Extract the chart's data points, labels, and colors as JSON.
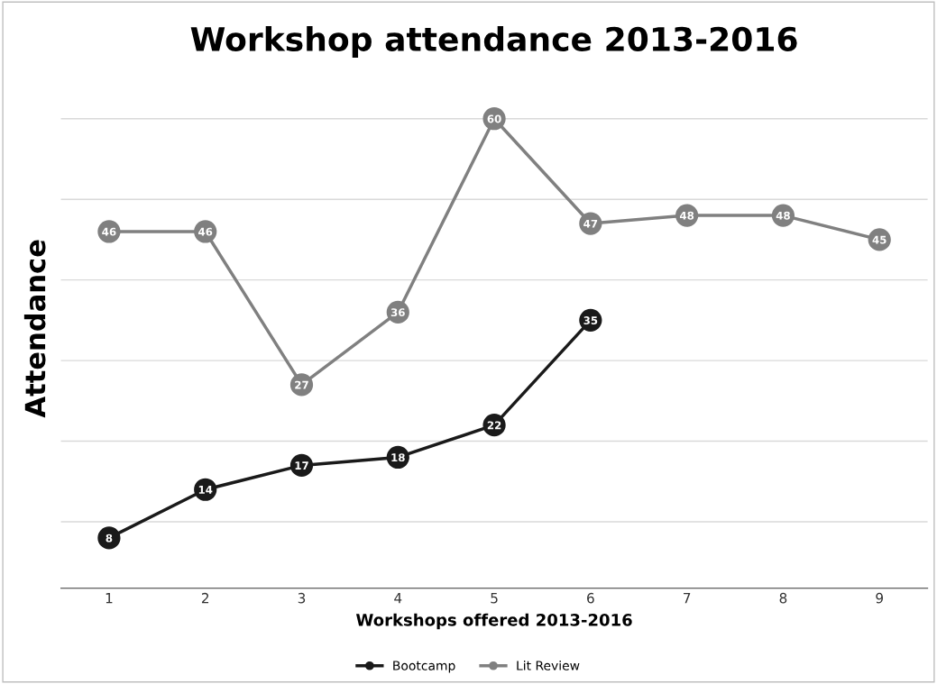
{
  "chart_data": {
    "type": "line",
    "title": "Workshop attendance 2013-2016",
    "xlabel": "Workshops offered 2013-2016",
    "ylabel": "Attendance",
    "categories": [
      "1",
      "2",
      "3",
      "4",
      "5",
      "6",
      "7",
      "8",
      "9"
    ],
    "series": [
      {
        "name": "Bootcamp",
        "color": "#1a1a1a",
        "values": [
          8,
          14,
          17,
          18,
          22,
          35,
          null,
          null,
          null
        ]
      },
      {
        "name": "Lit Review",
        "color": "#808080",
        "values": [
          46,
          46,
          27,
          36,
          60,
          47,
          48,
          48,
          45
        ]
      }
    ],
    "grid": "y",
    "legend": "bottom",
    "marker": "circle",
    "line_style": "solid",
    "data_labels": true
  }
}
